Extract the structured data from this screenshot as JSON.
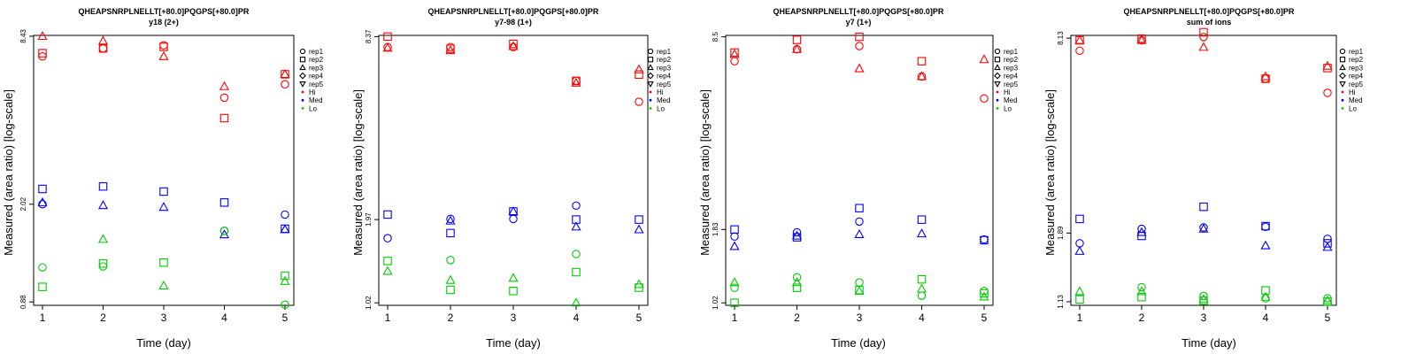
{
  "colors": {
    "Hi": "#ff0000",
    "Med": "#0000ff",
    "Lo": "#00cc00"
  },
  "legend": {
    "reps": [
      {
        "label": "rep1",
        "shape": "circle"
      },
      {
        "label": "rep2",
        "shape": "square"
      },
      {
        "label": "rep3",
        "shape": "triangle"
      },
      {
        "label": "rep4",
        "shape": "diamond"
      },
      {
        "label": "rep5",
        "shape": "triangle-down"
      }
    ],
    "levels": [
      {
        "label": "Hi",
        "color": "#ff0000"
      },
      {
        "label": "Med",
        "color": "#0000ff"
      },
      {
        "label": "Lo",
        "color": "#00cc00"
      }
    ]
  },
  "chart_data": [
    {
      "type": "scatter",
      "title": "QHEAPSNRPLNELLT[+80.0]PQGPS[+80.0]PR",
      "subtitle": "y18 (2+)",
      "xlabel": "Time (day)",
      "ylabel": "Measured (area ratio) [log-scale]",
      "x_ticks": [
        "1",
        "2",
        "3",
        "4",
        "5"
      ],
      "y_ticks": [
        "0.88",
        "2.02",
        "8.43"
      ],
      "y_tick_values": [
        0.88,
        2.02,
        8.43
      ],
      "ylim": [
        0.855,
        8.49
      ],
      "series": [
        {
          "level": "Hi",
          "rep": "rep1",
          "x": [
            1,
            2,
            3,
            4,
            5
          ],
          "y": [
            7.1,
            7.6,
            7.8,
            5.0,
            5.6
          ]
        },
        {
          "level": "Hi",
          "rep": "rep2",
          "x": [
            1,
            2,
            3,
            4,
            5
          ],
          "y": [
            7.3,
            7.6,
            7.7,
            4.2,
            6.1
          ]
        },
        {
          "level": "Hi",
          "rep": "rep3",
          "x": [
            1,
            2,
            3,
            4,
            5
          ],
          "y": [
            8.43,
            8.1,
            7.1,
            5.5,
            6.1
          ]
        },
        {
          "level": "Med",
          "rep": "rep1",
          "x": [
            1,
            2,
            3,
            4,
            5
          ],
          "y": [
            2.02,
            null,
            null,
            1.61,
            1.85
          ]
        },
        {
          "level": "Med",
          "rep": "rep2",
          "x": [
            1,
            2,
            3,
            4,
            5
          ],
          "y": [
            2.3,
            2.35,
            2.25,
            2.05,
            1.64
          ]
        },
        {
          "level": "Med",
          "rep": "rep3",
          "x": [
            1,
            2,
            3,
            4,
            5
          ],
          "y": [
            2.05,
            2.0,
            1.97,
            1.56,
            1.63
          ]
        },
        {
          "level": "Lo",
          "rep": "rep1",
          "x": [
            1,
            2,
            3,
            4,
            5
          ],
          "y": [
            1.18,
            1.19,
            null,
            1.61,
            0.86
          ]
        },
        {
          "level": "Lo",
          "rep": "rep2",
          "x": [
            1,
            2,
            3,
            4,
            5
          ],
          "y": [
            1.0,
            1.22,
            1.23,
            null,
            1.1
          ]
        },
        {
          "level": "Lo",
          "rep": "rep3",
          "x": [
            1,
            2,
            3,
            4,
            5
          ],
          "y": [
            null,
            1.5,
            1.01,
            null,
            1.05
          ]
        }
      ]
    },
    {
      "type": "scatter",
      "title": "QHEAPSNRPLNELLT[+80.0]PQGPS[+80.0]PR",
      "subtitle": "y7-98 (1+)",
      "xlabel": "Time (day)",
      "ylabel": "Measured (area ratio) [log-scale]",
      "x_ticks": [
        "1",
        "2",
        "3",
        "4",
        "5"
      ],
      "y_ticks": [
        "1.02",
        "1.97",
        "8.37"
      ],
      "y_tick_values": [
        1.02,
        1.97,
        8.37
      ],
      "ylim": [
        1.0,
        8.45
      ],
      "series": [
        {
          "level": "Hi",
          "rep": "rep1",
          "x": [
            1,
            2,
            3,
            4,
            5
          ],
          "y": [
            7.7,
            7.7,
            7.7,
            5.9,
            5.0
          ]
        },
        {
          "level": "Hi",
          "rep": "rep2",
          "x": [
            1,
            2,
            3,
            4,
            5
          ],
          "y": [
            8.37,
            7.6,
            7.9,
            5.9,
            6.2
          ]
        },
        {
          "level": "Hi",
          "rep": "rep3",
          "x": [
            1,
            2,
            3,
            4,
            5
          ],
          "y": [
            7.65,
            7.5,
            7.75,
            5.8,
            6.45
          ]
        },
        {
          "level": "Med",
          "rep": "rep1",
          "x": [
            1,
            2,
            3,
            4,
            5
          ],
          "y": [
            1.7,
            1.98,
            1.98,
            2.2,
            null
          ]
        },
        {
          "level": "Med",
          "rep": "rep2",
          "x": [
            1,
            2,
            3,
            4,
            5
          ],
          "y": [
            2.05,
            1.77,
            2.1,
            1.97,
            1.97
          ]
        },
        {
          "level": "Med",
          "rep": "rep3",
          "x": [
            1,
            2,
            3,
            4,
            5
          ],
          "y": [
            null,
            1.95,
            2.1,
            1.86,
            1.82
          ]
        },
        {
          "level": "Lo",
          "rep": "rep1",
          "x": [
            1,
            2,
            3,
            4,
            5
          ],
          "y": [
            null,
            1.43,
            null,
            1.5,
            null
          ]
        },
        {
          "level": "Lo",
          "rep": "rep2",
          "x": [
            1,
            2,
            3,
            4,
            5
          ],
          "y": [
            1.42,
            1.13,
            1.12,
            1.3,
            1.15
          ]
        },
        {
          "level": "Lo",
          "rep": "rep3",
          "x": [
            1,
            2,
            3,
            4,
            5
          ],
          "y": [
            1.31,
            1.22,
            1.24,
            1.02,
            1.18
          ]
        }
      ]
    },
    {
      "type": "scatter",
      "title": "QHEAPSNRPLNELLT[+80.0]PQGPS[+80.0]PR",
      "subtitle": "y7 (1+)",
      "xlabel": "Time (day)",
      "ylabel": "Measured (area ratio) [log-scale]",
      "x_ticks": [
        "1",
        "2",
        "3",
        "4",
        "5"
      ],
      "y_ticks": [
        "1.02",
        "1.83",
        "8.5"
      ],
      "y_tick_values": [
        1.02,
        1.83,
        8.5
      ],
      "ylim": [
        1.0,
        8.6
      ],
      "series": [
        {
          "level": "Hi",
          "rep": "rep1",
          "x": [
            1,
            2,
            3,
            4,
            5
          ],
          "y": [
            7.0,
            7.7,
            7.9,
            6.2,
            5.2
          ]
        },
        {
          "level": "Hi",
          "rep": "rep2",
          "x": [
            1,
            2,
            3,
            4,
            5
          ],
          "y": [
            7.5,
            8.3,
            8.5,
            7.0,
            null
          ]
        },
        {
          "level": "Hi",
          "rep": "rep3",
          "x": [
            1,
            2,
            3,
            4,
            5
          ],
          "y": [
            7.4,
            7.7,
            6.6,
            6.2,
            7.1
          ]
        },
        {
          "level": "Med",
          "rep": "rep1",
          "x": [
            1,
            2,
            3,
            4,
            5
          ],
          "y": [
            1.73,
            1.79,
            1.95,
            null,
            1.69
          ]
        },
        {
          "level": "Med",
          "rep": "rep2",
          "x": [
            1,
            2,
            3,
            4,
            5
          ],
          "y": [
            1.83,
            1.72,
            2.17,
            1.98,
            1.68
          ]
        },
        {
          "level": "Med",
          "rep": "rep3",
          "x": [
            1,
            2,
            3,
            4,
            5
          ],
          "y": [
            1.6,
            1.74,
            1.76,
            1.77,
            null
          ]
        },
        {
          "level": "Lo",
          "rep": "rep1",
          "x": [
            1,
            2,
            3,
            4,
            5
          ],
          "y": [
            1.15,
            1.25,
            1.2,
            1.08,
            1.12
          ]
        },
        {
          "level": "Lo",
          "rep": "rep2",
          "x": [
            1,
            2,
            3,
            4,
            5
          ],
          "y": [
            1.02,
            1.15,
            1.13,
            1.23,
            1.1
          ]
        },
        {
          "level": "Lo",
          "rep": "rep3",
          "x": [
            1,
            2,
            3,
            4,
            5
          ],
          "y": [
            1.2,
            1.2,
            1.12,
            1.14,
            1.07
          ]
        }
      ]
    },
    {
      "type": "scatter",
      "title": "QHEAPSNRPLNELLT[+80.0]PQGPS[+80.0]PR",
      "subtitle": "sum of ions",
      "xlabel": "Time (day)",
      "ylabel": "Measured (area ratio) [log-scale]",
      "x_ticks": [
        "1",
        "2",
        "3",
        "4",
        "5"
      ],
      "y_ticks": [
        "1.13",
        "1.89",
        "8.13"
      ],
      "y_tick_values": [
        1.13,
        1.89,
        8.13
      ],
      "ylim": [
        1.1,
        8.3
      ],
      "series": [
        {
          "level": "Hi",
          "rep": "rep1",
          "x": [
            1,
            2,
            3,
            4,
            5
          ],
          "y": [
            7.4,
            8.0,
            8.2,
            6.0,
            5.4
          ]
        },
        {
          "level": "Hi",
          "rep": "rep2",
          "x": [
            1,
            2,
            3,
            4,
            5
          ],
          "y": [
            8.0,
            8.1,
            8.5,
            6.0,
            6.5
          ]
        },
        {
          "level": "Hi",
          "rep": "rep3",
          "x": [
            1,
            2,
            3,
            4,
            5
          ],
          "y": [
            8.0,
            8.0,
            7.6,
            6.1,
            6.6
          ]
        },
        {
          "level": "Med",
          "rep": "rep1",
          "x": [
            1,
            2,
            3,
            4,
            5
          ],
          "y": [
            1.75,
            1.95,
            1.97,
            1.98,
            1.81
          ]
        },
        {
          "level": "Med",
          "rep": "rep2",
          "x": [
            1,
            2,
            3,
            4,
            5
          ],
          "y": [
            2.1,
            1.85,
            2.3,
            1.99,
            1.75
          ]
        },
        {
          "level": "Med",
          "rep": "rep3",
          "x": [
            1,
            2,
            3,
            4,
            5
          ],
          "y": [
            1.65,
            1.9,
            1.95,
            1.72,
            1.7
          ]
        },
        {
          "level": "Lo",
          "rep": "rep1",
          "x": [
            1,
            2,
            3,
            4,
            5
          ],
          "y": [
            null,
            1.26,
            1.18,
            1.16,
            1.16
          ]
        },
        {
          "level": "Lo",
          "rep": "rep2",
          "x": [
            1,
            2,
            3,
            4,
            5
          ],
          "y": [
            1.15,
            1.17,
            1.14,
            1.23,
            1.13
          ]
        },
        {
          "level": "Lo",
          "rep": "rep3",
          "x": [
            1,
            2,
            3,
            4,
            5
          ],
          "y": [
            1.22,
            1.22,
            1.15,
            1.17,
            1.14
          ]
        }
      ]
    }
  ]
}
